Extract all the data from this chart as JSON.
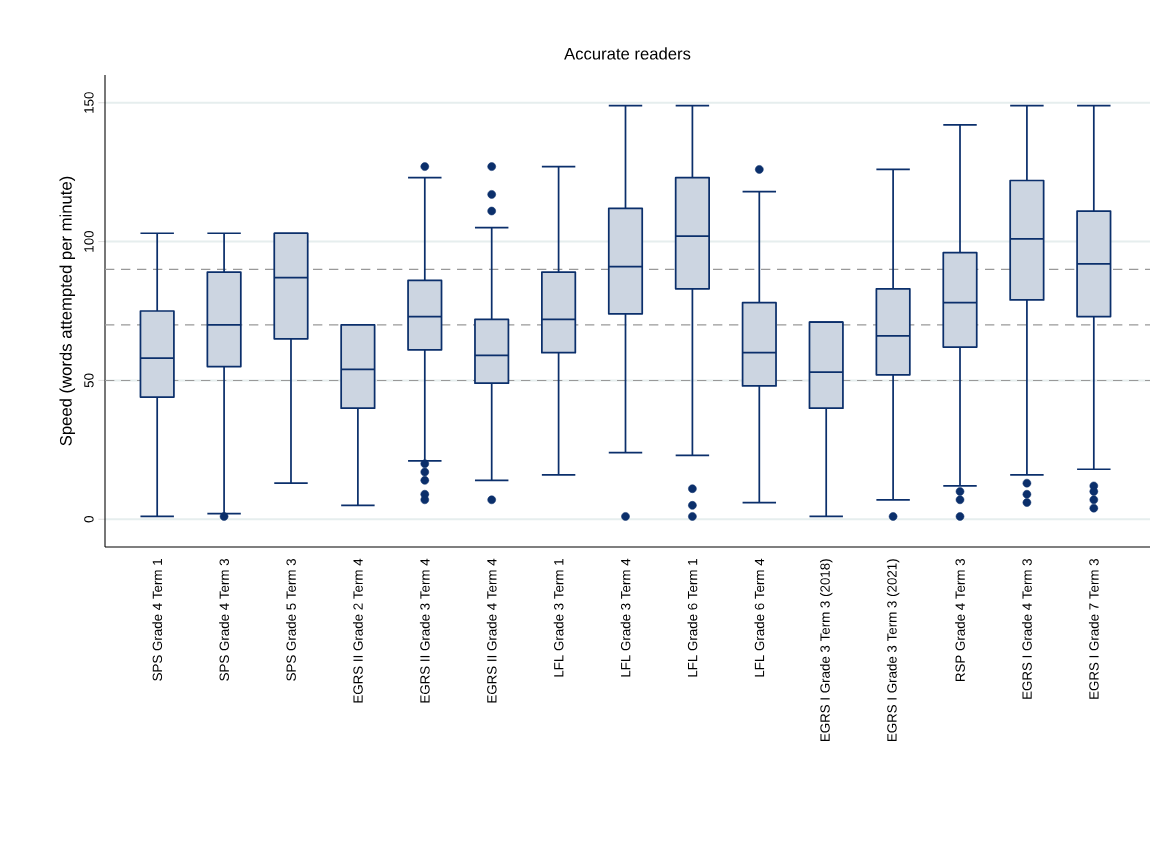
{
  "chart_data": {
    "type": "box",
    "title": "Accurate readers",
    "ylabel": "Speed (words attempted per minute)",
    "categories": [
      "SPS Grade 4 Term 1",
      "SPS Grade 4 Term 3",
      "SPS Grade 5 Term 3",
      "EGRS II Grade 2 Term 4",
      "EGRS II Grade 3 Term 4",
      "EGRS II Grade 4 Term 4",
      "LFL Grade 3 Term 1",
      "LFL Grade 3 Term 4",
      "LFL Grade 6 Term 1",
      "LFL Grade 6 Term 4",
      "EGRS I Grade 3 Term 3 (2018)",
      "EGRS I Grade 3 Term 3 (2021)",
      "RSP Grade 4 Term 3",
      "EGRS I Grade 4 Term 3",
      "EGRS I Grade 7 Term 3"
    ],
    "boxes": [
      {
        "low": 1,
        "q1": 44,
        "median": 58,
        "q3": 75,
        "high": 103
      },
      {
        "low": 2,
        "q1": 55,
        "median": 70,
        "q3": 89,
        "high": 103,
        "outliers": [
          1
        ]
      },
      {
        "low": 13,
        "q1": 65,
        "median": 87,
        "q3": 103,
        "high": 103
      },
      {
        "low": 5,
        "q1": 40,
        "median": 54,
        "q3": 70,
        "high": 70
      },
      {
        "low": 21,
        "q1": 61,
        "median": 73,
        "q3": 86,
        "high": 123,
        "outliers": [
          127,
          20,
          17,
          14,
          9,
          7
        ]
      },
      {
        "low": 14,
        "q1": 49,
        "median": 59,
        "q3": 72,
        "high": 105,
        "outliers": [
          127,
          117,
          111,
          7
        ]
      },
      {
        "low": 16,
        "q1": 60,
        "median": 72,
        "q3": 89,
        "high": 127
      },
      {
        "low": 24,
        "q1": 74,
        "median": 91,
        "q3": 112,
        "high": 149,
        "outliers": [
          1
        ]
      },
      {
        "low": 23,
        "q1": 83,
        "median": 102,
        "q3": 123,
        "high": 149,
        "outliers": [
          11,
          5,
          1
        ]
      },
      {
        "low": 6,
        "q1": 48,
        "median": 60,
        "q3": 78,
        "high": 118,
        "outliers": [
          126
        ]
      },
      {
        "low": 1,
        "q1": 40,
        "median": 53,
        "q3": 71,
        "high": 71
      },
      {
        "low": 7,
        "q1": 52,
        "median": 66,
        "q3": 83,
        "high": 126,
        "outliers": [
          1
        ]
      },
      {
        "low": 12,
        "q1": 62,
        "median": 78,
        "q3": 96,
        "high": 142,
        "outliers": [
          10,
          7,
          1
        ]
      },
      {
        "low": 16,
        "q1": 79,
        "median": 101,
        "q3": 122,
        "high": 149,
        "outliers": [
          13,
          9,
          6
        ]
      },
      {
        "low": 18,
        "q1": 73,
        "median": 92,
        "q3": 111,
        "high": 149,
        "outliers": [
          12,
          10,
          7,
          4
        ]
      }
    ],
    "color": "#0b2f6b",
    "marker": "circle",
    "ylim": [
      -10,
      160
    ],
    "yticks": [
      0,
      50,
      100,
      150
    ],
    "grid": "y",
    "ref_lines": [
      {
        "axis": "y",
        "value": 50,
        "color": "#999999",
        "line_style": "dashed"
      },
      {
        "axis": "y",
        "value": 70,
        "color": "#999999",
        "line_style": "dashed"
      },
      {
        "axis": "y",
        "value": 90,
        "color": "#999999",
        "line_style": "dashed"
      }
    ]
  }
}
